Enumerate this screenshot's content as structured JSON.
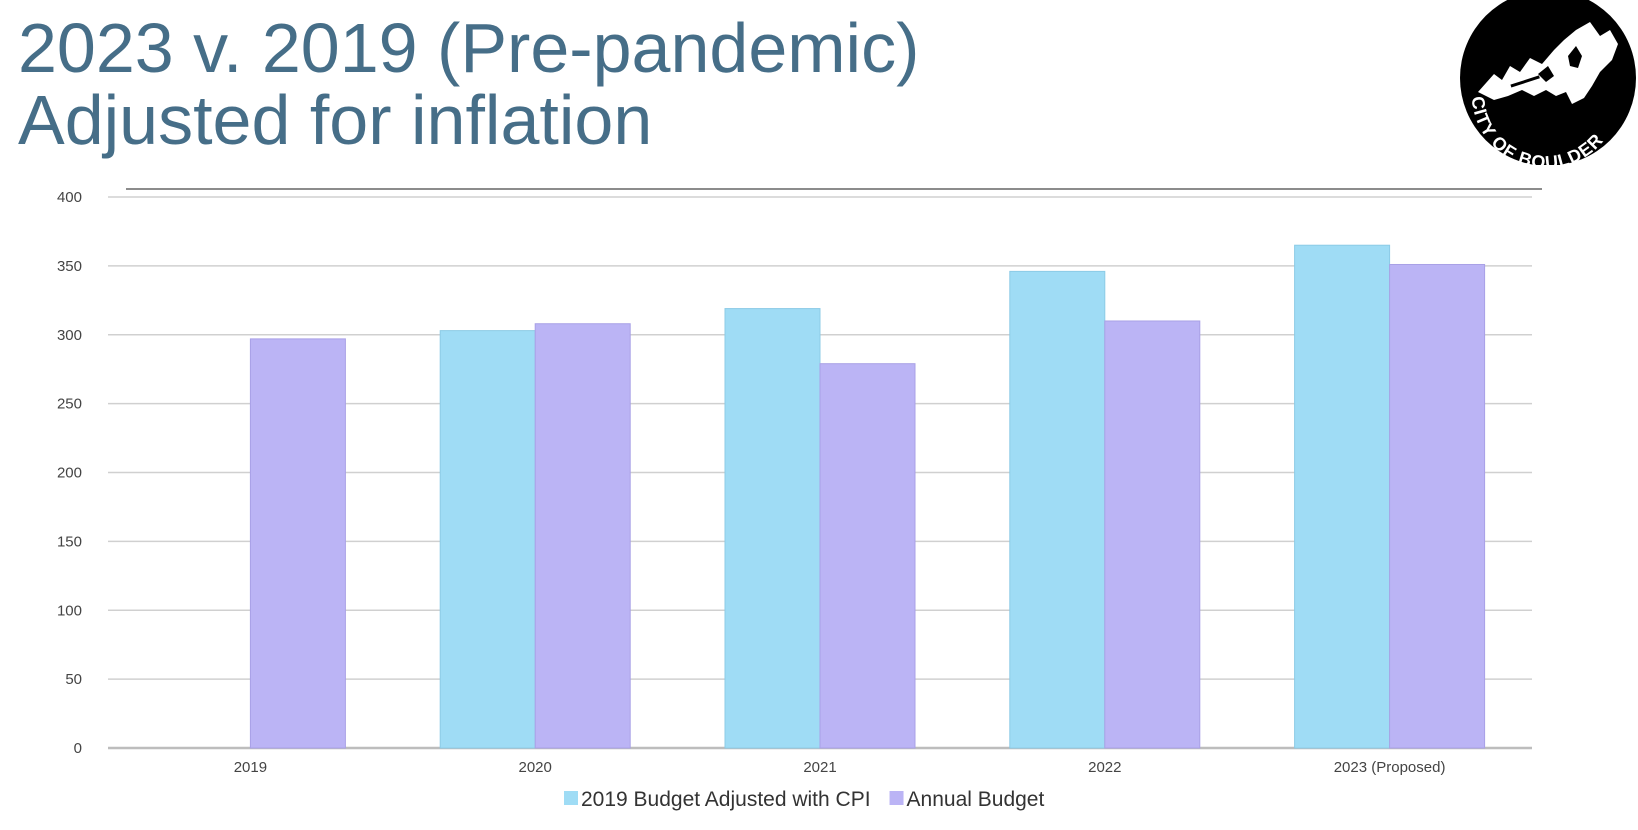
{
  "slide": {
    "title_line1": "2023 v. 2019 (Pre-pandemic)",
    "title_line2": "Adjusted for inflation",
    "logo_text": "CITY OF BOULDER"
  },
  "colors": {
    "title": "#466e88",
    "series_adjusted": "#9fdcf5",
    "series_annual": "#bbb4f5",
    "gridline": "#d0d0d0",
    "logo_bg": "#000000"
  },
  "chart_data": {
    "type": "bar",
    "title": "",
    "xlabel": "",
    "ylabel": "",
    "categories": [
      "2019",
      "2020",
      "2021",
      "2022",
      "2023 (Proposed)"
    ],
    "series": [
      {
        "name": "2019 Budget Adjusted with CPI",
        "values": [
          null,
          303,
          319,
          346,
          365
        ]
      },
      {
        "name": "Annual Budget",
        "values": [
          297,
          308,
          279,
          310,
          351
        ]
      }
    ],
    "ylim": [
      0,
      400
    ],
    "yticks": [
      0,
      50,
      100,
      150,
      200,
      250,
      300,
      350,
      400
    ],
    "grid": true,
    "legend": "bottom"
  }
}
